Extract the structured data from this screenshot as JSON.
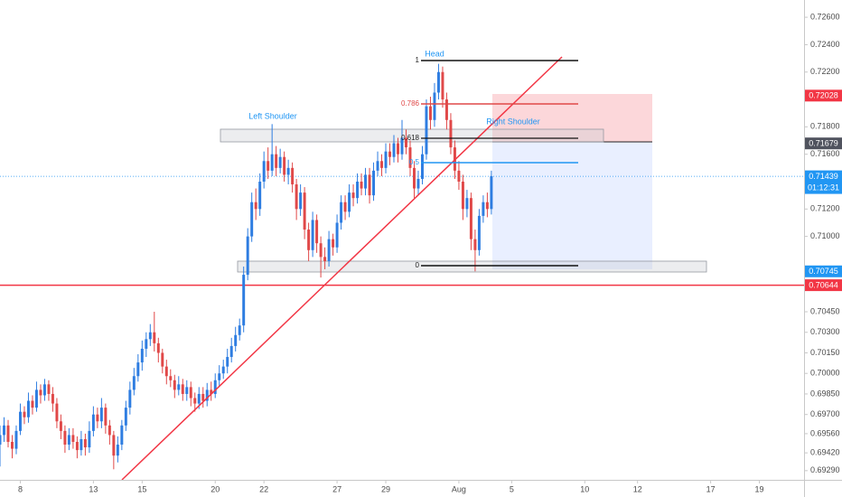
{
  "chart_data": {
    "type": "candlestick",
    "up_color": "#2e7de1",
    "down_color": "#e04848",
    "xlim": [
      0,
      198
    ],
    "ylim": [
      0.69223,
      0.72726
    ],
    "xticks": [
      {
        "value": 5,
        "label": "8"
      },
      {
        "value": 23,
        "label": "13"
      },
      {
        "value": 35,
        "label": "15"
      },
      {
        "value": 53,
        "label": "20"
      },
      {
        "value": 65,
        "label": "22"
      },
      {
        "value": 83,
        "label": "27"
      },
      {
        "value": 95,
        "label": "29"
      },
      {
        "value": 113,
        "label": "Aug"
      },
      {
        "value": 126,
        "label": "5"
      },
      {
        "value": 144,
        "label": "10"
      },
      {
        "value": 157,
        "label": "12"
      },
      {
        "value": 175,
        "label": "17"
      },
      {
        "value": 187,
        "label": "19"
      }
    ],
    "yticks": [
      {
        "value": 0.726,
        "label": "0.72600"
      },
      {
        "value": 0.724,
        "label": "0.72400"
      },
      {
        "value": 0.722,
        "label": "0.72200"
      },
      {
        "value": 0.718,
        "label": "0.71800"
      },
      {
        "value": 0.716,
        "label": "0.71600"
      },
      {
        "value": 0.712,
        "label": "0.71200"
      },
      {
        "value": 0.71,
        "label": "0.71000"
      },
      {
        "value": 0.7045,
        "label": "0.70450"
      },
      {
        "value": 0.703,
        "label": "0.70300"
      },
      {
        "value": 0.7015,
        "label": "0.70150"
      },
      {
        "value": 0.7,
        "label": "0.70000"
      },
      {
        "value": 0.6985,
        "label": "0.69850"
      },
      {
        "value": 0.697,
        "label": "0.69700"
      },
      {
        "value": 0.6956,
        "label": "0.69560"
      },
      {
        "value": 0.6942,
        "label": "0.69420"
      },
      {
        "value": 0.6929,
        "label": "0.69290"
      }
    ],
    "price_tags": [
      {
        "value": 0.72028,
        "label": "0.72028",
        "color": "#f23645"
      },
      {
        "value": 0.71679,
        "label": "0.71679",
        "color": "#50535e"
      },
      {
        "value": 0.71439,
        "label": "0.71439",
        "color": "#2196f3",
        "line": "dotted",
        "countdown": "01:12:31"
      },
      {
        "value": 0.70745,
        "label": "0.70745",
        "color": "#2196f3"
      },
      {
        "value": 0.70644,
        "label": "0.70644",
        "color": "#f23645",
        "line": "solid"
      }
    ],
    "annotations": {
      "left_shoulder": "Left Shoulder",
      "head": "Head",
      "right_shoulder": "Right Shoulder"
    },
    "fib_labels": [
      "1",
      "0.786",
      "0.618",
      "0.5",
      "0"
    ],
    "x": [
      0,
      1,
      2,
      3,
      4,
      5,
      6,
      7,
      8,
      9,
      10,
      11,
      12,
      13,
      14,
      15,
      16,
      17,
      18,
      19,
      20,
      21,
      22,
      23,
      24,
      25,
      26,
      27,
      28,
      29,
      30,
      31,
      32,
      33,
      34,
      35,
      36,
      37,
      38,
      39,
      40,
      41,
      42,
      43,
      44,
      45,
      46,
      47,
      48,
      49,
      50,
      51,
      52,
      53,
      54,
      55,
      56,
      57,
      58,
      59,
      60,
      61,
      62,
      63,
      64,
      65,
      66,
      67,
      68,
      69,
      70,
      71,
      72,
      73,
      74,
      75,
      76,
      77,
      78,
      79,
      80,
      81,
      82,
      83,
      84,
      85,
      86,
      87,
      88,
      89,
      90,
      91,
      92,
      93,
      94,
      95,
      96,
      97,
      98,
      99,
      100,
      101,
      102,
      103,
      104,
      105,
      106,
      107,
      108,
      109,
      110,
      111,
      112,
      113,
      114,
      115,
      116,
      117,
      118,
      119,
      120,
      121
    ],
    "open": [
      0.6948,
      0.6955,
      0.6962,
      0.695,
      0.6945,
      0.6958,
      0.6972,
      0.6968,
      0.698,
      0.6975,
      0.6988,
      0.6984,
      0.6992,
      0.6985,
      0.6978,
      0.6965,
      0.6958,
      0.6948,
      0.6955,
      0.695,
      0.6944,
      0.6952,
      0.6946,
      0.6958,
      0.697,
      0.6965,
      0.6975,
      0.6962,
      0.6955,
      0.694,
      0.6948,
      0.6962,
      0.6975,
      0.6988,
      0.6998,
      0.7008,
      0.7018,
      0.7025,
      0.703,
      0.7022,
      0.7015,
      0.7005,
      0.6998,
      0.6995,
      0.6988,
      0.6992,
      0.6985,
      0.699,
      0.6982,
      0.6978,
      0.6985,
      0.698,
      0.6988,
      0.6985,
      0.6995,
      0.7,
      0.7005,
      0.7012,
      0.702,
      0.7028,
      0.7035,
      0.7072,
      0.71,
      0.7125,
      0.712,
      0.714,
      0.7155,
      0.7148,
      0.716,
      0.715,
      0.7158,
      0.7145,
      0.715,
      0.7138,
      0.712,
      0.7132,
      0.7105,
      0.709,
      0.7112,
      0.7095,
      0.7085,
      0.7082,
      0.7098,
      0.7092,
      0.711,
      0.7125,
      0.7118,
      0.7132,
      0.7128,
      0.714,
      0.7135,
      0.7145,
      0.713,
      0.7148,
      0.7155,
      0.715,
      0.7162,
      0.7158,
      0.7168,
      0.716,
      0.7172,
      0.7165,
      0.715,
      0.7135,
      0.7142,
      0.716,
      0.7195,
      0.7185,
      0.7205,
      0.722,
      0.72,
      0.7185,
      0.7165,
      0.7148,
      0.714,
      0.712,
      0.7128,
      0.7098,
      0.709,
      0.7115,
      0.7125,
      0.712
    ],
    "high": [
      0.6962,
      0.6968,
      0.6966,
      0.6955,
      0.6962,
      0.6978,
      0.6976,
      0.6986,
      0.6984,
      0.6994,
      0.6992,
      0.6996,
      0.6995,
      0.699,
      0.6982,
      0.697,
      0.6962,
      0.696,
      0.696,
      0.6954,
      0.6958,
      0.6956,
      0.6965,
      0.6976,
      0.6975,
      0.6982,
      0.6978,
      0.6966,
      0.6958,
      0.6954,
      0.6966,
      0.698,
      0.6994,
      0.7004,
      0.7014,
      0.7024,
      0.703,
      0.7036,
      0.7045,
      0.7026,
      0.7018,
      0.701,
      0.7003,
      0.6999,
      0.6998,
      0.6996,
      0.6995,
      0.6994,
      0.6986,
      0.699,
      0.699,
      0.6993,
      0.6994,
      0.7,
      0.7006,
      0.701,
      0.7018,
      0.7026,
      0.7034,
      0.704,
      0.7078,
      0.7106,
      0.7132,
      0.7135,
      0.7146,
      0.7162,
      0.7165,
      0.7182,
      0.7166,
      0.7164,
      0.7162,
      0.7156,
      0.7154,
      0.7142,
      0.7138,
      0.7136,
      0.711,
      0.7118,
      0.7116,
      0.71,
      0.7092,
      0.7104,
      0.7102,
      0.7116,
      0.713,
      0.713,
      0.7138,
      0.7138,
      0.7146,
      0.7146,
      0.715,
      0.715,
      0.7154,
      0.7162,
      0.716,
      0.7168,
      0.7168,
      0.7174,
      0.7172,
      0.7185,
      0.7178,
      0.717,
      0.7155,
      0.7148,
      0.7166,
      0.72,
      0.7202,
      0.7212,
      0.7226,
      0.7224,
      0.7205,
      0.719,
      0.717,
      0.7155,
      0.7145,
      0.7134,
      0.7132,
      0.7105,
      0.712,
      0.713,
      0.7132,
      0.7148
    ],
    "low": [
      0.6932,
      0.695,
      0.6946,
      0.6938,
      0.6941,
      0.6955,
      0.6963,
      0.6964,
      0.697,
      0.6972,
      0.6978,
      0.698,
      0.698,
      0.6972,
      0.696,
      0.6952,
      0.6942,
      0.6944,
      0.6945,
      0.6938,
      0.694,
      0.694,
      0.6942,
      0.6954,
      0.696,
      0.696,
      0.6956,
      0.6948,
      0.693,
      0.6935,
      0.6944,
      0.6958,
      0.697,
      0.6984,
      0.6994,
      0.7002,
      0.7012,
      0.702,
      0.7016,
      0.7008,
      0.7,
      0.6992,
      0.699,
      0.6982,
      0.6984,
      0.698,
      0.698,
      0.6976,
      0.6972,
      0.6974,
      0.6975,
      0.6976,
      0.698,
      0.6982,
      0.699,
      0.6996,
      0.7,
      0.7008,
      0.7016,
      0.7024,
      0.703,
      0.7068,
      0.7096,
      0.7112,
      0.7115,
      0.7135,
      0.7142,
      0.7144,
      0.7144,
      0.7146,
      0.714,
      0.7138,
      0.7132,
      0.7112,
      0.7115,
      0.7098,
      0.7082,
      0.7085,
      0.7088,
      0.707,
      0.7076,
      0.7078,
      0.7086,
      0.7088,
      0.7105,
      0.7112,
      0.7114,
      0.7122,
      0.7124,
      0.713,
      0.713,
      0.7124,
      0.7126,
      0.7144,
      0.7144,
      0.7146,
      0.7152,
      0.7154,
      0.7154,
      0.7156,
      0.716,
      0.7144,
      0.7128,
      0.713,
      0.7138,
      0.7156,
      0.7178,
      0.718,
      0.72,
      0.7194,
      0.7178,
      0.716,
      0.7142,
      0.7134,
      0.7112,
      0.7114,
      0.709,
      0.70745,
      0.7086,
      0.711,
      0.7114,
      0.7116
    ],
    "close": [
      0.6955,
      0.6962,
      0.695,
      0.6945,
      0.6958,
      0.6972,
      0.6968,
      0.698,
      0.6975,
      0.6988,
      0.6984,
      0.6992,
      0.6985,
      0.6978,
      0.6965,
      0.6958,
      0.6948,
      0.6955,
      0.695,
      0.6944,
      0.6952,
      0.6946,
      0.6958,
      0.697,
      0.6965,
      0.6975,
      0.6962,
      0.6955,
      0.694,
      0.6948,
      0.6962,
      0.6975,
      0.6988,
      0.6998,
      0.7008,
      0.7018,
      0.7025,
      0.703,
      0.7022,
      0.7015,
      0.7005,
      0.6998,
      0.6995,
      0.6988,
      0.6992,
      0.6985,
      0.699,
      0.6982,
      0.6978,
      0.6985,
      0.698,
      0.6988,
      0.6985,
      0.6995,
      0.7,
      0.7005,
      0.7012,
      0.702,
      0.7028,
      0.7035,
      0.7072,
      0.71,
      0.7125,
      0.712,
      0.714,
      0.7155,
      0.7148,
      0.716,
      0.715,
      0.7158,
      0.7145,
      0.715,
      0.7138,
      0.712,
      0.7132,
      0.7105,
      0.709,
      0.7112,
      0.7095,
      0.7085,
      0.7082,
      0.7098,
      0.7092,
      0.711,
      0.7125,
      0.7118,
      0.7132,
      0.7128,
      0.714,
      0.7135,
      0.7145,
      0.713,
      0.7148,
      0.7155,
      0.715,
      0.7162,
      0.7158,
      0.7168,
      0.716,
      0.7172,
      0.7165,
      0.715,
      0.7135,
      0.7142,
      0.716,
      0.7195,
      0.7185,
      0.7205,
      0.722,
      0.72,
      0.7185,
      0.7165,
      0.7148,
      0.714,
      0.712,
      0.7128,
      0.7098,
      0.709,
      0.7115,
      0.7125,
      0.712,
      0.7144
    ]
  }
}
